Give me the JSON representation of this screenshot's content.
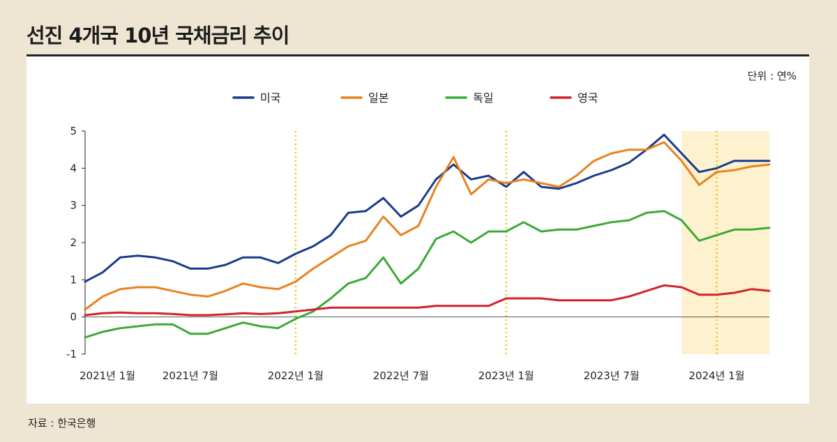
{
  "title": "선진 4개국 10년 국채금리 추이",
  "unit_label": "단위 : 연%",
  "source": "자료 : 한국은행",
  "chart_data": {
    "type": "line",
    "title": "선진 4개국 10년 국채금리 추이",
    "xlabel": "",
    "ylabel": "",
    "ylim": [
      -1,
      5
    ],
    "yticks": [
      -1,
      0,
      1,
      2,
      3,
      4,
      5
    ],
    "x_range": [
      "2021-01",
      "2024-04"
    ],
    "x_tick_labels": [
      {
        "label": "2021년 1월",
        "x": "2021-01"
      },
      {
        "label": "2021년 7월",
        "x": "2021-07"
      },
      {
        "label": "2022년 1월",
        "x": "2022-01"
      },
      {
        "label": "2022년 7월",
        "x": "2022-07"
      },
      {
        "label": "2023년 1월",
        "x": "2023-01"
      },
      {
        "label": "2023년 7월",
        "x": "2023-07"
      },
      {
        "label": "2024년 1월",
        "x": "2024-01"
      }
    ],
    "legend_position": "top",
    "grid": false,
    "reference_lines_x": [
      "2022-01",
      "2023-01",
      "2024-01"
    ],
    "highlight_range": [
      "2023-11",
      "2024-04"
    ],
    "colors": {
      "미국": "#1b3a8a",
      "일본": "#e8821e",
      "독일": "#3aaa35",
      "영국": "#d4202a",
      "reference_line": "#f0c419",
      "highlight": "#fdf1cf"
    },
    "series": [
      {
        "name": "미국",
        "data": [
          [
            "2021-01",
            0.95
          ],
          [
            "2021-02",
            1.2
          ],
          [
            "2021-03",
            1.6
          ],
          [
            "2021-04",
            1.65
          ],
          [
            "2021-05",
            1.6
          ],
          [
            "2021-06",
            1.5
          ],
          [
            "2021-07",
            1.3
          ],
          [
            "2021-08",
            1.3
          ],
          [
            "2021-09",
            1.4
          ],
          [
            "2021-10",
            1.6
          ],
          [
            "2021-11",
            1.6
          ],
          [
            "2021-12",
            1.45
          ],
          [
            "2022-01",
            1.7
          ],
          [
            "2022-02",
            1.9
          ],
          [
            "2022-03",
            2.2
          ],
          [
            "2022-04",
            2.8
          ],
          [
            "2022-05",
            2.85
          ],
          [
            "2022-06",
            3.2
          ],
          [
            "2022-07",
            2.7
          ],
          [
            "2022-08",
            3.0
          ],
          [
            "2022-09",
            3.7
          ],
          [
            "2022-10",
            4.1
          ],
          [
            "2022-11",
            3.7
          ],
          [
            "2022-12",
            3.8
          ],
          [
            "2023-01",
            3.5
          ],
          [
            "2023-02",
            3.9
          ],
          [
            "2023-03",
            3.5
          ],
          [
            "2023-04",
            3.45
          ],
          [
            "2023-05",
            3.6
          ],
          [
            "2023-06",
            3.8
          ],
          [
            "2023-07",
            3.95
          ],
          [
            "2023-08",
            4.15
          ],
          [
            "2023-09",
            4.5
          ],
          [
            "2023-10",
            4.9
          ],
          [
            "2023-11",
            4.4
          ],
          [
            "2023-12",
            3.9
          ],
          [
            "2024-01",
            4.0
          ],
          [
            "2024-02",
            4.2
          ],
          [
            "2024-03",
            4.2
          ],
          [
            "2024-04",
            4.2
          ]
        ]
      },
      {
        "name": "일본",
        "data": [
          [
            "2021-01",
            0.2
          ],
          [
            "2021-02",
            0.55
          ],
          [
            "2021-03",
            0.75
          ],
          [
            "2021-04",
            0.8
          ],
          [
            "2021-05",
            0.8
          ],
          [
            "2021-06",
            0.7
          ],
          [
            "2021-07",
            0.6
          ],
          [
            "2021-08",
            0.55
          ],
          [
            "2021-09",
            0.7
          ],
          [
            "2021-10",
            0.9
          ],
          [
            "2021-11",
            0.8
          ],
          [
            "2021-12",
            0.75
          ],
          [
            "2022-01",
            0.95
          ],
          [
            "2022-02",
            1.3
          ],
          [
            "2022-03",
            1.6
          ],
          [
            "2022-04",
            1.9
          ],
          [
            "2022-05",
            2.05
          ],
          [
            "2022-06",
            2.7
          ],
          [
            "2022-07",
            2.2
          ],
          [
            "2022-08",
            2.45
          ],
          [
            "2022-09",
            3.5
          ],
          [
            "2022-10",
            4.3
          ],
          [
            "2022-11",
            3.3
          ],
          [
            "2022-12",
            3.7
          ],
          [
            "2023-01",
            3.6
          ],
          [
            "2023-02",
            3.7
          ],
          [
            "2023-03",
            3.6
          ],
          [
            "2023-04",
            3.5
          ],
          [
            "2023-05",
            3.8
          ],
          [
            "2023-06",
            4.2
          ],
          [
            "2023-07",
            4.4
          ],
          [
            "2023-08",
            4.5
          ],
          [
            "2023-09",
            4.5
          ],
          [
            "2023-10",
            4.7
          ],
          [
            "2023-11",
            4.2
          ],
          [
            "2023-12",
            3.55
          ],
          [
            "2024-01",
            3.9
          ],
          [
            "2024-02",
            3.95
          ],
          [
            "2024-03",
            4.05
          ],
          [
            "2024-04",
            4.1
          ]
        ]
      },
      {
        "name": "독일",
        "data": [
          [
            "2021-01",
            -0.55
          ],
          [
            "2021-02",
            -0.4
          ],
          [
            "2021-03",
            -0.3
          ],
          [
            "2021-04",
            -0.25
          ],
          [
            "2021-05",
            -0.2
          ],
          [
            "2021-06",
            -0.2
          ],
          [
            "2021-07",
            -0.45
          ],
          [
            "2021-08",
            -0.45
          ],
          [
            "2021-09",
            -0.3
          ],
          [
            "2021-10",
            -0.15
          ],
          [
            "2021-11",
            -0.25
          ],
          [
            "2021-12",
            -0.3
          ],
          [
            "2022-01",
            -0.05
          ],
          [
            "2022-02",
            0.15
          ],
          [
            "2022-03",
            0.5
          ],
          [
            "2022-04",
            0.9
          ],
          [
            "2022-05",
            1.05
          ],
          [
            "2022-06",
            1.6
          ],
          [
            "2022-07",
            0.9
          ],
          [
            "2022-08",
            1.3
          ],
          [
            "2022-09",
            2.1
          ],
          [
            "2022-10",
            2.3
          ],
          [
            "2022-11",
            2.0
          ],
          [
            "2022-12",
            2.3
          ],
          [
            "2023-01",
            2.3
          ],
          [
            "2023-02",
            2.55
          ],
          [
            "2023-03",
            2.3
          ],
          [
            "2023-04",
            2.35
          ],
          [
            "2023-05",
            2.35
          ],
          [
            "2023-06",
            2.45
          ],
          [
            "2023-07",
            2.55
          ],
          [
            "2023-08",
            2.6
          ],
          [
            "2023-09",
            2.8
          ],
          [
            "2023-10",
            2.85
          ],
          [
            "2023-11",
            2.6
          ],
          [
            "2023-12",
            2.05
          ],
          [
            "2024-01",
            2.2
          ],
          [
            "2024-02",
            2.35
          ],
          [
            "2024-03",
            2.35
          ],
          [
            "2024-04",
            2.4
          ]
        ]
      },
      {
        "name": "영국",
        "data": [
          [
            "2021-01",
            0.05
          ],
          [
            "2021-02",
            0.1
          ],
          [
            "2021-03",
            0.12
          ],
          [
            "2021-04",
            0.1
          ],
          [
            "2021-05",
            0.1
          ],
          [
            "2021-06",
            0.08
          ],
          [
            "2021-07",
            0.05
          ],
          [
            "2021-08",
            0.05
          ],
          [
            "2021-09",
            0.07
          ],
          [
            "2021-10",
            0.1
          ],
          [
            "2021-11",
            0.08
          ],
          [
            "2021-12",
            0.1
          ],
          [
            "2022-01",
            0.15
          ],
          [
            "2022-02",
            0.2
          ],
          [
            "2022-03",
            0.25
          ],
          [
            "2022-04",
            0.25
          ],
          [
            "2022-05",
            0.25
          ],
          [
            "2022-06",
            0.25
          ],
          [
            "2022-07",
            0.25
          ],
          [
            "2022-08",
            0.25
          ],
          [
            "2022-09",
            0.3
          ],
          [
            "2022-10",
            0.3
          ],
          [
            "2022-11",
            0.3
          ],
          [
            "2022-12",
            0.3
          ],
          [
            "2023-01",
            0.5
          ],
          [
            "2023-02",
            0.5
          ],
          [
            "2023-03",
            0.5
          ],
          [
            "2023-04",
            0.45
          ],
          [
            "2023-05",
            0.45
          ],
          [
            "2023-06",
            0.45
          ],
          [
            "2023-07",
            0.45
          ],
          [
            "2023-08",
            0.55
          ],
          [
            "2023-09",
            0.7
          ],
          [
            "2023-10",
            0.85
          ],
          [
            "2023-11",
            0.8
          ],
          [
            "2023-12",
            0.6
          ],
          [
            "2024-01",
            0.6
          ],
          [
            "2024-02",
            0.65
          ],
          [
            "2024-03",
            0.75
          ],
          [
            "2024-04",
            0.7
          ]
        ]
      }
    ]
  }
}
